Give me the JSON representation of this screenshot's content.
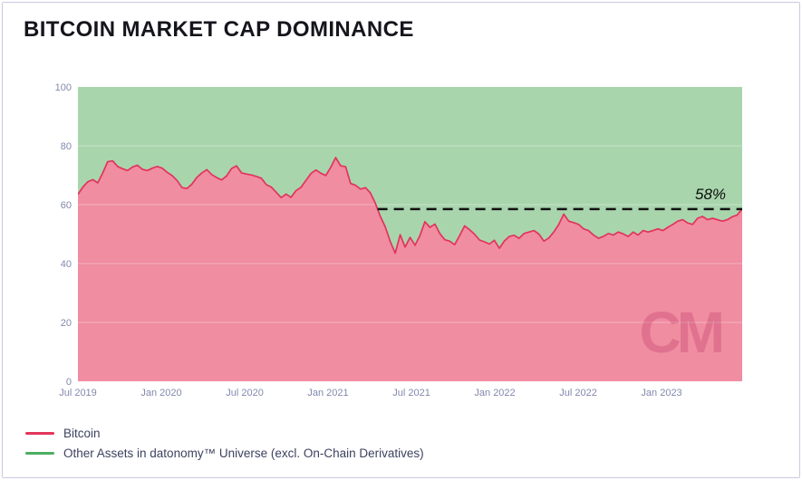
{
  "title": "BITCOIN MARKET CAP DOMINANCE",
  "watermark": "CM",
  "annotation": {
    "label": "58%",
    "value": 58.5
  },
  "legend": {
    "items": [
      {
        "label": "Bitcoin",
        "color": "#e5345c"
      },
      {
        "label": "Other Assets in datonomy™ Universe (excl. On-Chain Derivatives)",
        "color": "#4dae60"
      }
    ]
  },
  "colors": {
    "bitcoin_fill": "#f08da1",
    "bitcoin_line": "#e2335c",
    "other_fill": "#a9d5ad",
    "dashed_line": "#111111",
    "axis_label": "#8289ad",
    "gridline": "rgba(255,255,255,0.28)",
    "card_border": "#c9cce0"
  },
  "chart_data": {
    "type": "area",
    "stacked": true,
    "title": "BITCOIN MARKET CAP DOMINANCE",
    "xlabel": "",
    "ylabel": "",
    "ylim": [
      0,
      100
    ],
    "y_ticks": [
      0,
      20,
      40,
      60,
      80,
      100
    ],
    "x_tick_labels": [
      "Jul 2019",
      "Jan 2020",
      "Jul 2020",
      "Jan 2021",
      "Jul 2021",
      "Jan 2022",
      "Jul 2022",
      "Jan 2023"
    ],
    "x_tick_month_offsets": [
      0,
      6,
      12,
      18,
      24,
      30,
      36,
      42
    ],
    "x_total_months": 47.8,
    "x_range": "Jul 2019 to ~Jun 2023, evenly spaced samples",
    "grid": "faint horizontal gridlines at each y tick",
    "legend_position": "bottom-left",
    "annotation": {
      "type": "dashed-hline",
      "y": 58.5,
      "label": "58%",
      "note": "dashed line starts where Bitcoin series first crosses below it in Apr 2021 and runs to right edge"
    },
    "series": [
      {
        "name": "Bitcoin",
        "line_color": "#e2335c",
        "fill_color": "#f08da1",
        "values": [
          63.5,
          66.0,
          67.8,
          68.5,
          67.4,
          70.8,
          74.6,
          74.9,
          73.0,
          72.2,
          71.6,
          72.8,
          73.4,
          72.0,
          71.6,
          72.4,
          73.0,
          72.4,
          71.0,
          69.9,
          68.2,
          65.8,
          65.5,
          67.0,
          69.3,
          70.8,
          71.9,
          70.2,
          69.2,
          68.4,
          69.8,
          72.3,
          73.2,
          70.8,
          70.4,
          70.1,
          69.6,
          69.0,
          66.8,
          66.0,
          64.2,
          62.4,
          63.6,
          62.5,
          64.8,
          65.9,
          68.2,
          70.6,
          71.8,
          70.7,
          69.9,
          72.7,
          76.0,
          73.2,
          72.9,
          67.2,
          66.6,
          65.3,
          65.8,
          64.0,
          60.5,
          56.0,
          52.5,
          47.5,
          43.5,
          49.8,
          45.6,
          48.9,
          46.2,
          49.5,
          54.2,
          52.3,
          53.4,
          50.2,
          48.1,
          47.6,
          46.4,
          49.5,
          52.8,
          51.5,
          50.0,
          48.0,
          47.4,
          46.6,
          47.9,
          45.2,
          47.6,
          49.2,
          49.6,
          48.6,
          50.2,
          50.7,
          51.2,
          50.0,
          47.6,
          48.7,
          50.7,
          53.3,
          56.8,
          54.4,
          53.9,
          53.3,
          51.8,
          51.2,
          49.7,
          48.6,
          49.2,
          50.2,
          49.7,
          50.7,
          50.1,
          49.2,
          50.7,
          49.7,
          51.2,
          50.7,
          51.2,
          51.8,
          51.2,
          52.3,
          53.3,
          54.4,
          54.9,
          53.8,
          53.3,
          55.4,
          56.0,
          54.9,
          55.4,
          54.9,
          54.4,
          54.9,
          55.9,
          56.5,
          58.6
        ]
      },
      {
        "name": "Other Assets in datonomy™ Universe (excl. On-Chain Derivatives)",
        "line_color": "#4dae60",
        "fill_color": "#a9d5ad",
        "values_note": "stacked complement: 100 minus Bitcoin value at every sample"
      }
    ]
  }
}
